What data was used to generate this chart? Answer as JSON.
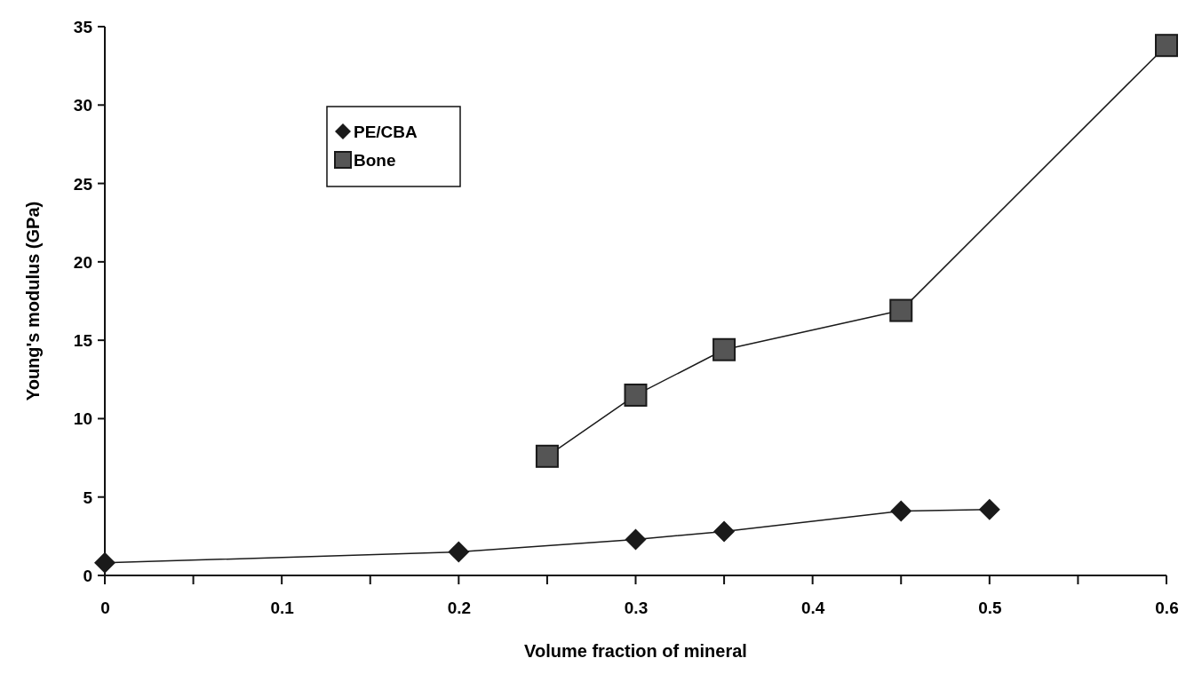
{
  "chart_data": {
    "type": "line",
    "xlabel": "Volume fraction of mineral",
    "ylabel": "Young's modulus (GPa)",
    "xlim": [
      0,
      0.6
    ],
    "xticks": [
      0,
      {
        "value": 0.05,
        "label": null
      },
      0.1,
      {
        "value": 0.15,
        "label": null
      },
      0.2,
      {
        "value": 0.25,
        "label": null
      },
      0.3,
      {
        "value": 0.35,
        "label": null
      },
      0.4,
      {
        "value": 0.45,
        "label": null
      },
      0.5,
      {
        "value": 0.55,
        "label": null
      },
      0.6
    ],
    "ylim": [
      0,
      35
    ],
    "yticks": [
      0,
      5,
      10,
      15,
      20,
      25,
      30,
      35
    ],
    "grid": false,
    "legend": "top left",
    "series": [
      {
        "name": "PE/CBA",
        "color": "#1a1a1a",
        "marker": "diamond",
        "x": [
          0,
          0.2,
          0.3,
          0.35,
          0.45,
          0.5
        ],
        "values": [
          0.8,
          1.5,
          2.3,
          2.8,
          4.1,
          4.2
        ]
      },
      {
        "name": "Bone",
        "color": "#1a1a1a",
        "marker": "square",
        "x": [
          0.25,
          0.3,
          0.35,
          0.45,
          0.6
        ],
        "values": [
          7.6,
          11.5,
          14.4,
          16.9,
          33.8
        ]
      }
    ]
  }
}
